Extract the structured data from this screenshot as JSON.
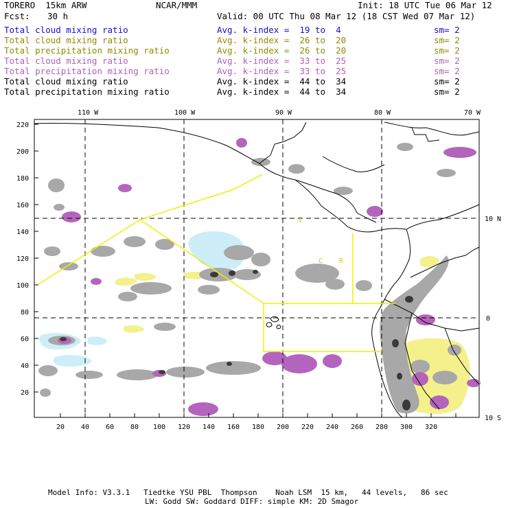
{
  "header": {
    "model": "TORERO  15km ARW",
    "center": "NCAR/MMM",
    "init": "Init: 18 UTC Tue 06 Mar 12",
    "fcst_label": "Fcst:",
    "fcst_value": "30 h",
    "valid": "Valid: 00 UTC Thu 08 Mar 12 (18 CST Wed 07 Mar 12)"
  },
  "legend": [
    {
      "field": "Total cloud mixing ratio",
      "kindex": "Avg. k-index =  19 to  4",
      "sm": "sm= 2",
      "color": "#1010c8"
    },
    {
      "field": "Total cloud mixing ratio",
      "kindex": "Avg. k-index =  26 to  20",
      "sm": "sm= 2",
      "color": "#8c8c00"
    },
    {
      "field": "Total precipitation mixing ratio",
      "kindex": "Avg. k-index =  26 to  20",
      "sm": "sm= 2",
      "color": "#8c8c00"
    },
    {
      "field": "Total cloud mixing ratio",
      "kindex": "Avg. k-index =  33 to  25",
      "sm": "sm= 2",
      "color": "#b060b8"
    },
    {
      "field": "Total precipitation mixing ratio",
      "kindex": "Avg. k-index =  33 to  25",
      "sm": "sm= 2",
      "color": "#b060b8"
    },
    {
      "field": "Total cloud mixing ratio",
      "kindex": "Avg. k-index =  44 to  34",
      "sm": "sm= 2",
      "color": "#000000"
    },
    {
      "field": "Total precipitation mixing ratio",
      "kindex": "Avg. k-index =  44 to  34",
      "sm": "sm= 2",
      "color": "#000000"
    }
  ],
  "map": {
    "lon_labels": [
      "110 W",
      "100 W",
      "90 W",
      "80 W",
      "70 W"
    ],
    "lat_labels": [
      "10 N",
      "0",
      "10 S"
    ],
    "x_ticks": [
      "20",
      "40",
      "60",
      "80",
      "100",
      "120",
      "140",
      "160",
      "180",
      "200",
      "220",
      "240",
      "260",
      "280",
      "300",
      "320"
    ],
    "y_ticks": [
      "220",
      "200",
      "180",
      "160",
      "140",
      "120",
      "100",
      "80",
      "60",
      "40",
      "20"
    ],
    "region_labels": [
      "I",
      "C",
      "R"
    ],
    "colors": {
      "cloud_light": "#cdeef8",
      "gray": "#a8a8a8",
      "dark": "#3a3a3a",
      "purple": "#b464bc",
      "yellow": "#f4f08c",
      "box": "#f0f000"
    }
  },
  "footer": {
    "line1": "Model Info: V3.3.1   Tiedtke YSU PBL  Thompson    Noah LSM  15 km,   44 levels,   86 sec",
    "line2": "LW: Godd SW: Goddard DIFF: simple KM: 2D Smagor"
  }
}
